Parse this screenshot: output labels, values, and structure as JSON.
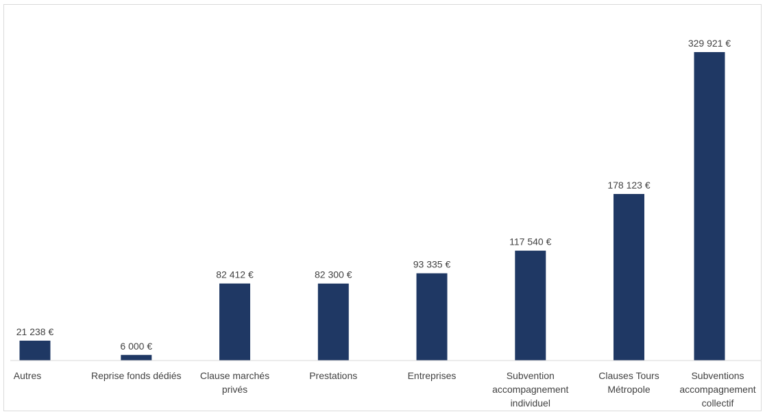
{
  "chart_data": {
    "type": "bar",
    "title": "",
    "xlabel": "",
    "ylabel": "",
    "grid": false,
    "legend": "none",
    "bar_color": "#1f3864",
    "categories": [
      [
        "Autres"
      ],
      [
        "Reprise fonds dédiés"
      ],
      [
        "Clause marchés",
        "privés"
      ],
      [
        "Prestations"
      ],
      [
        "Entreprises"
      ],
      [
        "Subvention",
        "accompagnement",
        "individuel"
      ],
      [
        "Clauses Tours",
        "Métropole"
      ],
      [
        "Subventions",
        "accompagnement",
        "collectif"
      ]
    ],
    "values": [
      21238,
      6000,
      82412,
      82300,
      93335,
      117540,
      178123,
      329921
    ],
    "value_labels": [
      "21 238 €",
      "6 000 €",
      "82 412 €",
      "82 300 €",
      "93 335 €",
      "117 540 €",
      "178 123 €",
      "329 921 €"
    ]
  }
}
